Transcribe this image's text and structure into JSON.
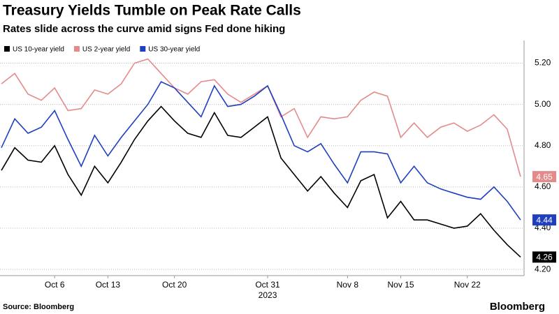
{
  "chart_data": {
    "type": "line",
    "title": "Treasury Yields Tumble on Peak Rate Calls",
    "subtitle": "Rates slide across the curve amid signs Fed done hiking",
    "source": "Source: Bloomberg",
    "brand": "Bloomberg",
    "x_sublabel": "2023",
    "categories": [
      null,
      null,
      null,
      null,
      "Oct 6",
      null,
      null,
      null,
      "Oct 13",
      null,
      null,
      null,
      null,
      "Oct 20",
      null,
      null,
      null,
      null,
      null,
      null,
      "Oct 31",
      null,
      null,
      null,
      null,
      null,
      "Nov 8",
      null,
      null,
      null,
      "Nov 15",
      null,
      null,
      null,
      null,
      "Nov 22",
      null,
      null,
      null,
      null
    ],
    "series": [
      {
        "name": "US 10-year yield",
        "color": "#000000",
        "values": [
          4.68,
          4.79,
          4.73,
          4.72,
          4.8,
          4.66,
          4.56,
          4.7,
          4.62,
          4.72,
          4.83,
          4.92,
          4.99,
          4.92,
          4.86,
          4.84,
          4.96,
          4.85,
          4.84,
          4.89,
          4.94,
          4.74,
          4.66,
          4.58,
          4.65,
          4.57,
          4.5,
          4.63,
          4.66,
          4.45,
          4.53,
          4.44,
          4.44,
          4.42,
          4.4,
          4.41,
          4.47,
          4.39,
          4.32,
          4.26
        ]
      },
      {
        "name": "US 2-year yield",
        "color": "#e58a8a",
        "values": [
          5.1,
          5.15,
          5.05,
          5.02,
          5.08,
          4.97,
          4.98,
          5.07,
          5.05,
          5.1,
          5.2,
          5.22,
          5.15,
          5.08,
          5.05,
          5.11,
          5.12,
          5.05,
          5.01,
          5.05,
          5.09,
          4.94,
          4.98,
          4.84,
          4.94,
          4.93,
          4.94,
          5.02,
          5.06,
          5.04,
          4.84,
          4.91,
          4.84,
          4.89,
          4.91,
          4.87,
          4.9,
          4.95,
          4.88,
          4.65
        ]
      },
      {
        "name": "US 30-year yield",
        "color": "#1f3fbf",
        "values": [
          4.79,
          4.93,
          4.86,
          4.89,
          4.97,
          4.83,
          4.7,
          4.85,
          4.75,
          4.84,
          4.92,
          5.0,
          5.11,
          5.08,
          5.01,
          4.94,
          5.09,
          4.99,
          5.0,
          5.04,
          5.09,
          4.95,
          4.8,
          4.77,
          4.81,
          4.71,
          4.62,
          4.77,
          4.77,
          4.76,
          4.62,
          4.7,
          4.62,
          4.59,
          4.57,
          4.55,
          4.54,
          4.6,
          4.53,
          4.44
        ]
      }
    ],
    "ylim": [
      4.17,
      5.31
    ],
    "yticks": [
      {
        "value": 4.2,
        "label": "4.20"
      },
      {
        "value": 4.4,
        "label": "4.40"
      },
      {
        "value": 4.6,
        "label": "4.60"
      },
      {
        "value": 4.8,
        "label": "4.80"
      },
      {
        "value": 5.0,
        "label": "5.00"
      },
      {
        "value": 5.2,
        "label": "5.20"
      }
    ],
    "grid": true,
    "legend": "top-left"
  }
}
